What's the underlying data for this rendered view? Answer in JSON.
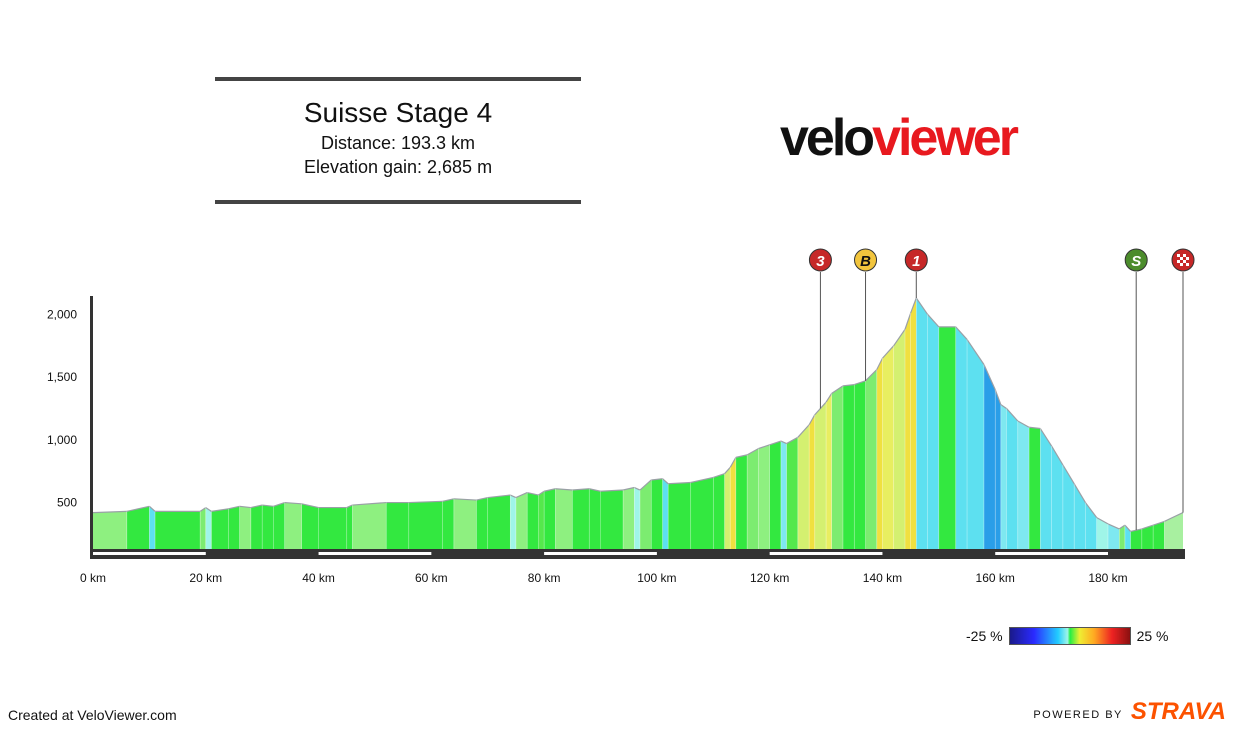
{
  "header": {
    "title": "Suisse Stage 4",
    "distance": "Distance: 193.3 km",
    "elevation": "Elevation gain: 2,685 m"
  },
  "logo": {
    "part1": "velo",
    "part2": "viewer"
  },
  "footer": {
    "created": "Created at VeloViewer.com",
    "powered": "POWERED BY",
    "strava": "STRAVA"
  },
  "legend": {
    "min_label": "-25 %",
    "max_label": "25 %"
  },
  "colors": {
    "axis": "#333333",
    "outline": "#9aa0a6",
    "green": "#33e840",
    "yellow": "#f0e040",
    "orange": "#f0b030",
    "cyan": "#5de0f0",
    "blue": "#2a9ee8",
    "red_marker": "#c62828",
    "yellow_marker": "#f2c53d",
    "green_marker": "#4c8c2c"
  },
  "chart_data": {
    "type": "area",
    "title": "Suisse Stage 4",
    "x_unit": "km",
    "xlim": [
      0,
      193.3
    ],
    "ylim": [
      130,
      2130
    ],
    "x_ticks": [
      0,
      20,
      40,
      60,
      80,
      100,
      120,
      140,
      160,
      180
    ],
    "x_tick_labels": [
      "0 km",
      "20 km",
      "40 km",
      "60 km",
      "80 km",
      "100 km",
      "120 km",
      "140 km",
      "160 km",
      "180 km"
    ],
    "y_ticks": [
      500,
      1000,
      1500,
      2000
    ],
    "y_tick_labels": [
      "500",
      "1,000",
      "1,500",
      "2,000"
    ],
    "grid": false,
    "points": [
      [
        0,
        420
      ],
      [
        6,
        430
      ],
      [
        10,
        470
      ],
      [
        11,
        430
      ],
      [
        19,
        430
      ],
      [
        20,
        460
      ],
      [
        21,
        430
      ],
      [
        24,
        450
      ],
      [
        26,
        470
      ],
      [
        28,
        460
      ],
      [
        30,
        480
      ],
      [
        32,
        470
      ],
      [
        34,
        500
      ],
      [
        37,
        490
      ],
      [
        40,
        460
      ],
      [
        45,
        460
      ],
      [
        46,
        480
      ],
      [
        52,
        500
      ],
      [
        56,
        500
      ],
      [
        62,
        510
      ],
      [
        64,
        530
      ],
      [
        68,
        520
      ],
      [
        70,
        540
      ],
      [
        74,
        560
      ],
      [
        75,
        540
      ],
      [
        77,
        580
      ],
      [
        79,
        560
      ],
      [
        80,
        590
      ],
      [
        82,
        610
      ],
      [
        85,
        600
      ],
      [
        88,
        610
      ],
      [
        90,
        590
      ],
      [
        94,
        600
      ],
      [
        96,
        620
      ],
      [
        97,
        600
      ],
      [
        99,
        680
      ],
      [
        101,
        690
      ],
      [
        102,
        650
      ],
      [
        106,
        660
      ],
      [
        110,
        700
      ],
      [
        112,
        730
      ],
      [
        113,
        780
      ],
      [
        114,
        860
      ],
      [
        116,
        880
      ],
      [
        118,
        930
      ],
      [
        120,
        960
      ],
      [
        122,
        990
      ],
      [
        123,
        970
      ],
      [
        125,
        1020
      ],
      [
        127,
        1120
      ],
      [
        128,
        1200
      ],
      [
        130,
        1300
      ],
      [
        131,
        1370
      ],
      [
        133,
        1430
      ],
      [
        135,
        1440
      ],
      [
        137,
        1470
      ],
      [
        139,
        1560
      ],
      [
        140,
        1650
      ],
      [
        142,
        1750
      ],
      [
        144,
        1880
      ],
      [
        145,
        2010
      ],
      [
        146,
        2130
      ],
      [
        148,
        2000
      ],
      [
        150,
        1900
      ],
      [
        153,
        1900
      ],
      [
        155,
        1800
      ],
      [
        158,
        1600
      ],
      [
        160,
        1400
      ],
      [
        161,
        1280
      ],
      [
        162,
        1250
      ],
      [
        164,
        1150
      ],
      [
        166,
        1100
      ],
      [
        168,
        1090
      ],
      [
        170,
        950
      ],
      [
        172,
        800
      ],
      [
        174,
        650
      ],
      [
        176,
        500
      ],
      [
        178,
        380
      ],
      [
        180,
        330
      ],
      [
        182,
        290
      ],
      [
        183,
        320
      ],
      [
        184,
        270
      ],
      [
        186,
        290
      ],
      [
        188,
        320
      ],
      [
        190,
        350
      ],
      [
        193.3,
        420
      ]
    ],
    "markers": [
      {
        "label": "3",
        "km": 129,
        "type": "climb_cat3"
      },
      {
        "label": "B",
        "km": 137,
        "type": "bonus"
      },
      {
        "label": "1",
        "km": 146,
        "type": "climb_cat1"
      },
      {
        "label": "S",
        "km": 185,
        "type": "sprint"
      },
      {
        "label": "",
        "km": 193.3,
        "type": "finish"
      }
    ]
  }
}
